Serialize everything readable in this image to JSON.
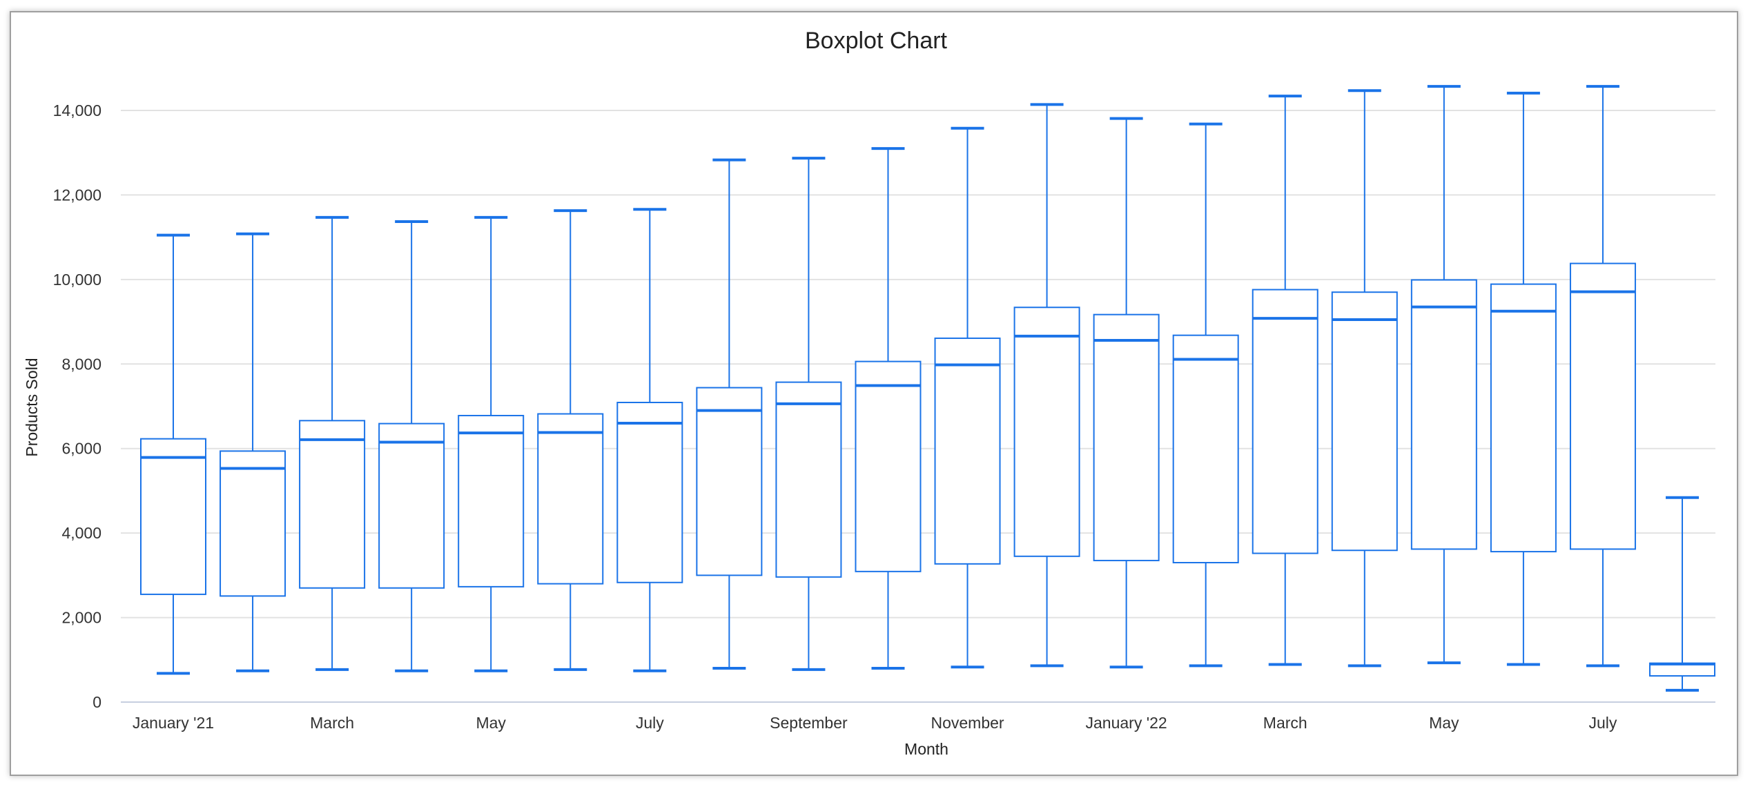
{
  "chart_data": {
    "type": "boxplot",
    "title": "Boxplot Chart",
    "xlabel": "Month",
    "ylabel": "Products Sold",
    "ylim": [
      0,
      14000
    ],
    "yticks": [
      "0",
      "2,000",
      "4,000",
      "6,000",
      "8,000",
      "10,000",
      "12,000",
      "14,000"
    ],
    "ytick_values": [
      0,
      2000,
      4000,
      6000,
      8000,
      10000,
      12000,
      14000
    ],
    "xtick_labels": [
      "January '21",
      "March",
      "May",
      "July",
      "September",
      "November",
      "January '22",
      "March",
      "May",
      "July"
    ],
    "xtick_category_index": [
      0,
      2,
      4,
      6,
      8,
      10,
      12,
      14,
      16,
      18
    ],
    "grid": true,
    "color": "#1a73e8",
    "boxes": [
      {
        "min": 680,
        "q1": 2550,
        "median": 5790,
        "q3": 6230,
        "max": 11050
      },
      {
        "min": 740,
        "q1": 2510,
        "median": 5530,
        "q3": 5940,
        "max": 11080
      },
      {
        "min": 770,
        "q1": 2700,
        "median": 6210,
        "q3": 6660,
        "max": 11470
      },
      {
        "min": 740,
        "q1": 2700,
        "median": 6150,
        "q3": 6590,
        "max": 11370
      },
      {
        "min": 740,
        "q1": 2730,
        "median": 6370,
        "q3": 6780,
        "max": 11470
      },
      {
        "min": 770,
        "q1": 2800,
        "median": 6380,
        "q3": 6820,
        "max": 11630
      },
      {
        "min": 740,
        "q1": 2830,
        "median": 6600,
        "q3": 7090,
        "max": 11660
      },
      {
        "min": 800,
        "q1": 3000,
        "median": 6900,
        "q3": 7440,
        "max": 12830
      },
      {
        "min": 770,
        "q1": 2960,
        "median": 7060,
        "q3": 7570,
        "max": 12870
      },
      {
        "min": 800,
        "q1": 3090,
        "median": 7490,
        "q3": 8060,
        "max": 13100
      },
      {
        "min": 830,
        "q1": 3270,
        "median": 7980,
        "q3": 8610,
        "max": 13580
      },
      {
        "min": 860,
        "q1": 3450,
        "median": 8660,
        "q3": 9340,
        "max": 14140
      },
      {
        "min": 830,
        "q1": 3350,
        "median": 8560,
        "q3": 9170,
        "max": 13810
      },
      {
        "min": 860,
        "q1": 3300,
        "median": 8110,
        "q3": 8680,
        "max": 13680
      },
      {
        "min": 890,
        "q1": 3520,
        "median": 9080,
        "q3": 9760,
        "max": 14340
      },
      {
        "min": 860,
        "q1": 3590,
        "median": 9050,
        "q3": 9700,
        "max": 14470
      },
      {
        "min": 930,
        "q1": 3620,
        "median": 9350,
        "q3": 9990,
        "max": 14570
      },
      {
        "min": 890,
        "q1": 3560,
        "median": 9250,
        "q3": 9890,
        "max": 14410
      },
      {
        "min": 860,
        "q1": 3620,
        "median": 9710,
        "q3": 10380,
        "max": 14570
      },
      {
        "min": 280,
        "q1": 620,
        "median": 900,
        "q3": 920,
        "max": 4840
      }
    ]
  }
}
